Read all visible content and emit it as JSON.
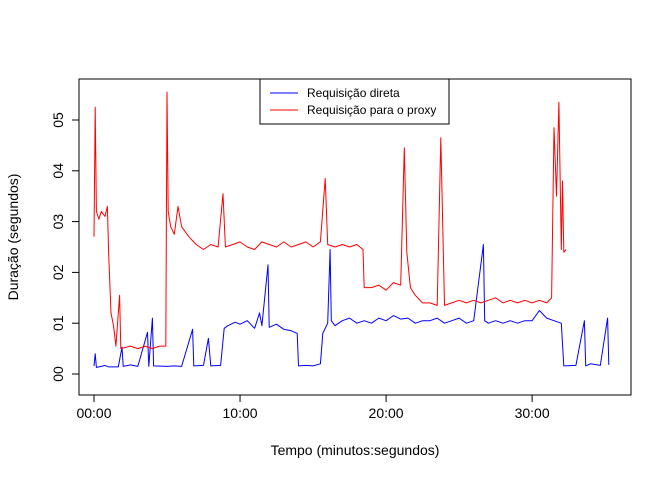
{
  "chart_data": {
    "type": "line",
    "title": "",
    "xlabel": "Tempo (minutos:segundos)",
    "ylabel": "Duração (segundos)",
    "x_unit": "minutes:seconds",
    "xlim": [
      "00:00",
      "35:20"
    ],
    "ylim": [
      0,
      5.6
    ],
    "x_ticks": [
      "00:00",
      "10:00",
      "20:00",
      "30:00"
    ],
    "y_ticks": [
      "00",
      "01",
      "02",
      "03",
      "04",
      "05"
    ],
    "grid": false,
    "legend_position": "top-center",
    "series": [
      {
        "name": "Requisição direta",
        "color": "#0000ff",
        "points": [
          [
            "00:00",
            0.16
          ],
          [
            "00:05",
            0.4
          ],
          [
            "00:10",
            0.13
          ],
          [
            "00:30",
            0.15
          ],
          [
            "00:45",
            0.17
          ],
          [
            "01:00",
            0.14
          ],
          [
            "01:40",
            0.14
          ],
          [
            "01:55",
            0.53
          ],
          [
            "02:00",
            0.15
          ],
          [
            "02:30",
            0.18
          ],
          [
            "03:00",
            0.15
          ],
          [
            "03:40",
            0.82
          ],
          [
            "03:45",
            0.15
          ],
          [
            "04:00",
            1.1
          ],
          [
            "04:05",
            0.16
          ],
          [
            "05:00",
            0.15
          ],
          [
            "05:30",
            0.16
          ],
          [
            "06:00",
            0.15
          ],
          [
            "06:45",
            0.88
          ],
          [
            "06:50",
            0.16
          ],
          [
            "07:30",
            0.17
          ],
          [
            "07:50",
            0.7
          ],
          [
            "08:00",
            0.16
          ],
          [
            "08:40",
            0.17
          ],
          [
            "08:55",
            0.9
          ],
          [
            "09:10",
            0.95
          ],
          [
            "09:40",
            1.02
          ],
          [
            "10:00",
            0.98
          ],
          [
            "10:30",
            1.05
          ],
          [
            "11:00",
            0.9
          ],
          [
            "11:20",
            1.2
          ],
          [
            "11:30",
            0.95
          ],
          [
            "11:55",
            2.15
          ],
          [
            "12:00",
            0.92
          ],
          [
            "12:30",
            0.98
          ],
          [
            "13:00",
            0.88
          ],
          [
            "13:30",
            0.85
          ],
          [
            "13:55",
            0.8
          ],
          [
            "14:00",
            0.16
          ],
          [
            "14:30",
            0.17
          ],
          [
            "15:00",
            0.16
          ],
          [
            "15:30",
            0.2
          ],
          [
            "15:40",
            0.8
          ],
          [
            "16:00",
            1.0
          ],
          [
            "16:10",
            2.45
          ],
          [
            "16:15",
            1.05
          ],
          [
            "16:30",
            0.95
          ],
          [
            "17:00",
            1.05
          ],
          [
            "17:30",
            1.1
          ],
          [
            "18:00",
            1.0
          ],
          [
            "18:30",
            1.05
          ],
          [
            "19:00",
            1.0
          ],
          [
            "19:30",
            1.1
          ],
          [
            "20:00",
            1.05
          ],
          [
            "20:30",
            1.15
          ],
          [
            "21:00",
            1.08
          ],
          [
            "21:30",
            1.1
          ],
          [
            "22:00",
            1.0
          ],
          [
            "22:30",
            1.05
          ],
          [
            "23:00",
            1.05
          ],
          [
            "23:30",
            1.1
          ],
          [
            "24:00",
            1.0
          ],
          [
            "24:30",
            1.05
          ],
          [
            "25:00",
            1.1
          ],
          [
            "25:30",
            1.0
          ],
          [
            "26:00",
            1.05
          ],
          [
            "26:40",
            2.55
          ],
          [
            "26:45",
            1.05
          ],
          [
            "27:00",
            1.0
          ],
          [
            "27:30",
            1.05
          ],
          [
            "28:00",
            1.0
          ],
          [
            "28:30",
            1.05
          ],
          [
            "29:00",
            1.0
          ],
          [
            "29:30",
            1.05
          ],
          [
            "30:00",
            1.05
          ],
          [
            "30:30",
            1.25
          ],
          [
            "31:00",
            1.1
          ],
          [
            "31:30",
            1.05
          ],
          [
            "32:00",
            1.0
          ],
          [
            "32:10",
            0.16
          ],
          [
            "33:00",
            0.17
          ],
          [
            "33:35",
            1.05
          ],
          [
            "33:40",
            0.16
          ],
          [
            "34:00",
            0.2
          ],
          [
            "34:40",
            0.17
          ],
          [
            "35:10",
            1.1
          ],
          [
            "35:15",
            0.18
          ]
        ]
      },
      {
        "name": "Requisição para o proxy",
        "color": "#ff0000",
        "points": [
          [
            "00:00",
            2.7
          ],
          [
            "00:05",
            5.25
          ],
          [
            "00:10",
            3.2
          ],
          [
            "00:20",
            3.05
          ],
          [
            "00:30",
            3.2
          ],
          [
            "00:45",
            3.1
          ],
          [
            "00:55",
            3.3
          ],
          [
            "01:00",
            2.4
          ],
          [
            "01:10",
            1.2
          ],
          [
            "01:20",
            0.95
          ],
          [
            "01:30",
            0.55
          ],
          [
            "01:45",
            1.55
          ],
          [
            "01:50",
            0.5
          ],
          [
            "02:30",
            0.55
          ],
          [
            "03:00",
            0.5
          ],
          [
            "03:30",
            0.55
          ],
          [
            "04:00",
            0.5
          ],
          [
            "04:30",
            0.55
          ],
          [
            "04:55",
            0.55
          ],
          [
            "05:00",
            5.55
          ],
          [
            "05:05",
            3.2
          ],
          [
            "05:15",
            2.9
          ],
          [
            "05:30",
            2.75
          ],
          [
            "05:45",
            3.3
          ],
          [
            "06:00",
            2.9
          ],
          [
            "06:30",
            2.7
          ],
          [
            "07:00",
            2.55
          ],
          [
            "07:30",
            2.45
          ],
          [
            "08:00",
            2.55
          ],
          [
            "08:30",
            2.5
          ],
          [
            "08:50",
            3.55
          ],
          [
            "09:00",
            2.5
          ],
          [
            "09:30",
            2.55
          ],
          [
            "10:00",
            2.6
          ],
          [
            "10:30",
            2.5
          ],
          [
            "11:00",
            2.45
          ],
          [
            "11:30",
            2.6
          ],
          [
            "12:00",
            2.55
          ],
          [
            "12:30",
            2.5
          ],
          [
            "13:00",
            2.6
          ],
          [
            "13:30",
            2.5
          ],
          [
            "14:00",
            2.55
          ],
          [
            "14:30",
            2.6
          ],
          [
            "15:00",
            2.5
          ],
          [
            "15:30",
            2.6
          ],
          [
            "15:50",
            3.85
          ],
          [
            "16:00",
            2.55
          ],
          [
            "16:30",
            2.5
          ],
          [
            "17:00",
            2.55
          ],
          [
            "17:30",
            2.5
          ],
          [
            "18:00",
            2.55
          ],
          [
            "18:25",
            2.45
          ],
          [
            "18:30",
            1.7
          ],
          [
            "19:00",
            1.7
          ],
          [
            "19:30",
            1.75
          ],
          [
            "20:00",
            1.65
          ],
          [
            "20:30",
            1.8
          ],
          [
            "21:00",
            1.75
          ],
          [
            "21:15",
            4.45
          ],
          [
            "21:25",
            2.4
          ],
          [
            "21:40",
            1.7
          ],
          [
            "22:00",
            1.55
          ],
          [
            "22:30",
            1.4
          ],
          [
            "23:00",
            1.4
          ],
          [
            "23:30",
            1.35
          ],
          [
            "23:45",
            4.65
          ],
          [
            "24:00",
            1.35
          ],
          [
            "24:30",
            1.4
          ],
          [
            "25:00",
            1.45
          ],
          [
            "25:30",
            1.4
          ],
          [
            "26:00",
            1.45
          ],
          [
            "26:30",
            1.4
          ],
          [
            "27:00",
            1.45
          ],
          [
            "27:30",
            1.5
          ],
          [
            "28:00",
            1.4
          ],
          [
            "28:30",
            1.45
          ],
          [
            "29:00",
            1.4
          ],
          [
            "29:30",
            1.45
          ],
          [
            "30:00",
            1.4
          ],
          [
            "30:30",
            1.45
          ],
          [
            "31:00",
            1.4
          ],
          [
            "31:20",
            1.5
          ],
          [
            "31:30",
            4.85
          ],
          [
            "31:40",
            3.5
          ],
          [
            "31:50",
            5.35
          ],
          [
            "32:00",
            2.45
          ],
          [
            "32:05",
            3.8
          ],
          [
            "32:10",
            2.4
          ],
          [
            "32:20",
            2.45
          ]
        ]
      }
    ]
  }
}
